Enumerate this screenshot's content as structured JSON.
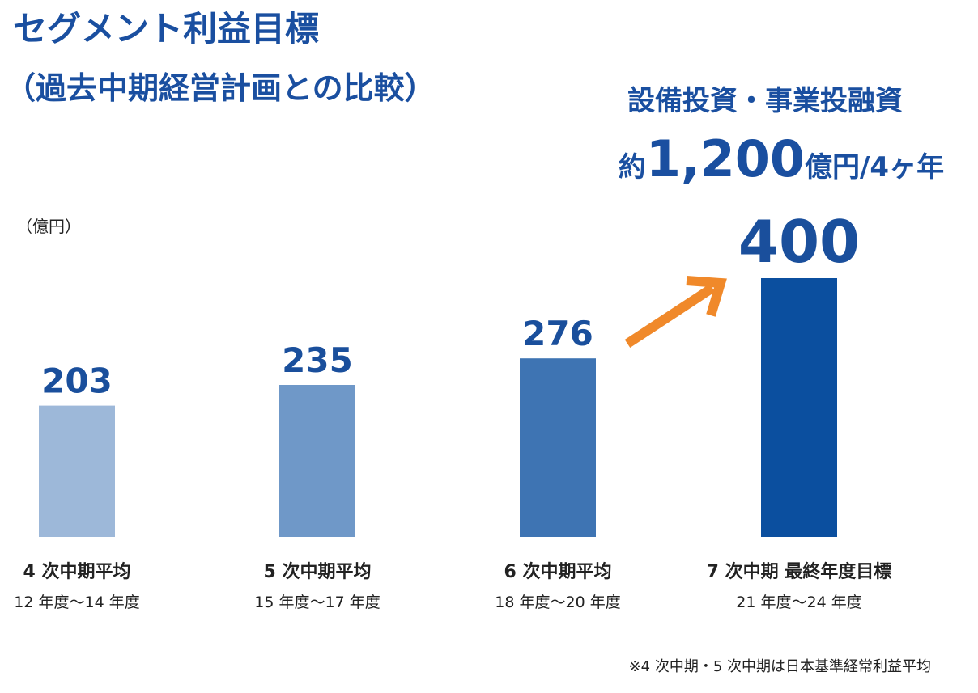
{
  "chart_data": {
    "type": "bar",
    "title": "セグメント利益目標",
    "subtitle": "（過去中期経営計画との比較）",
    "callout": {
      "heading": "設備投資・事業投融資",
      "prefix": "約",
      "amount": "1,200",
      "suffix": "億円/4ヶ年"
    },
    "unit_label": "（億円）",
    "categories": [
      "4 次中期平均",
      "5 次中期平均",
      "6 次中期平均",
      "7 次中期 最終年度目標"
    ],
    "periods": [
      "12 年度〜14 年度",
      "15 年度〜17 年度",
      "18 年度〜20 年度",
      "21 年度〜24 年度"
    ],
    "values": [
      203,
      235,
      276,
      400
    ],
    "colors": [
      "#9db8d9",
      "#6f98c8",
      "#3e74b3",
      "#0b4f9f"
    ],
    "footnote": "※4 次中期・5 次中期は日本基準経常利益平均"
  }
}
